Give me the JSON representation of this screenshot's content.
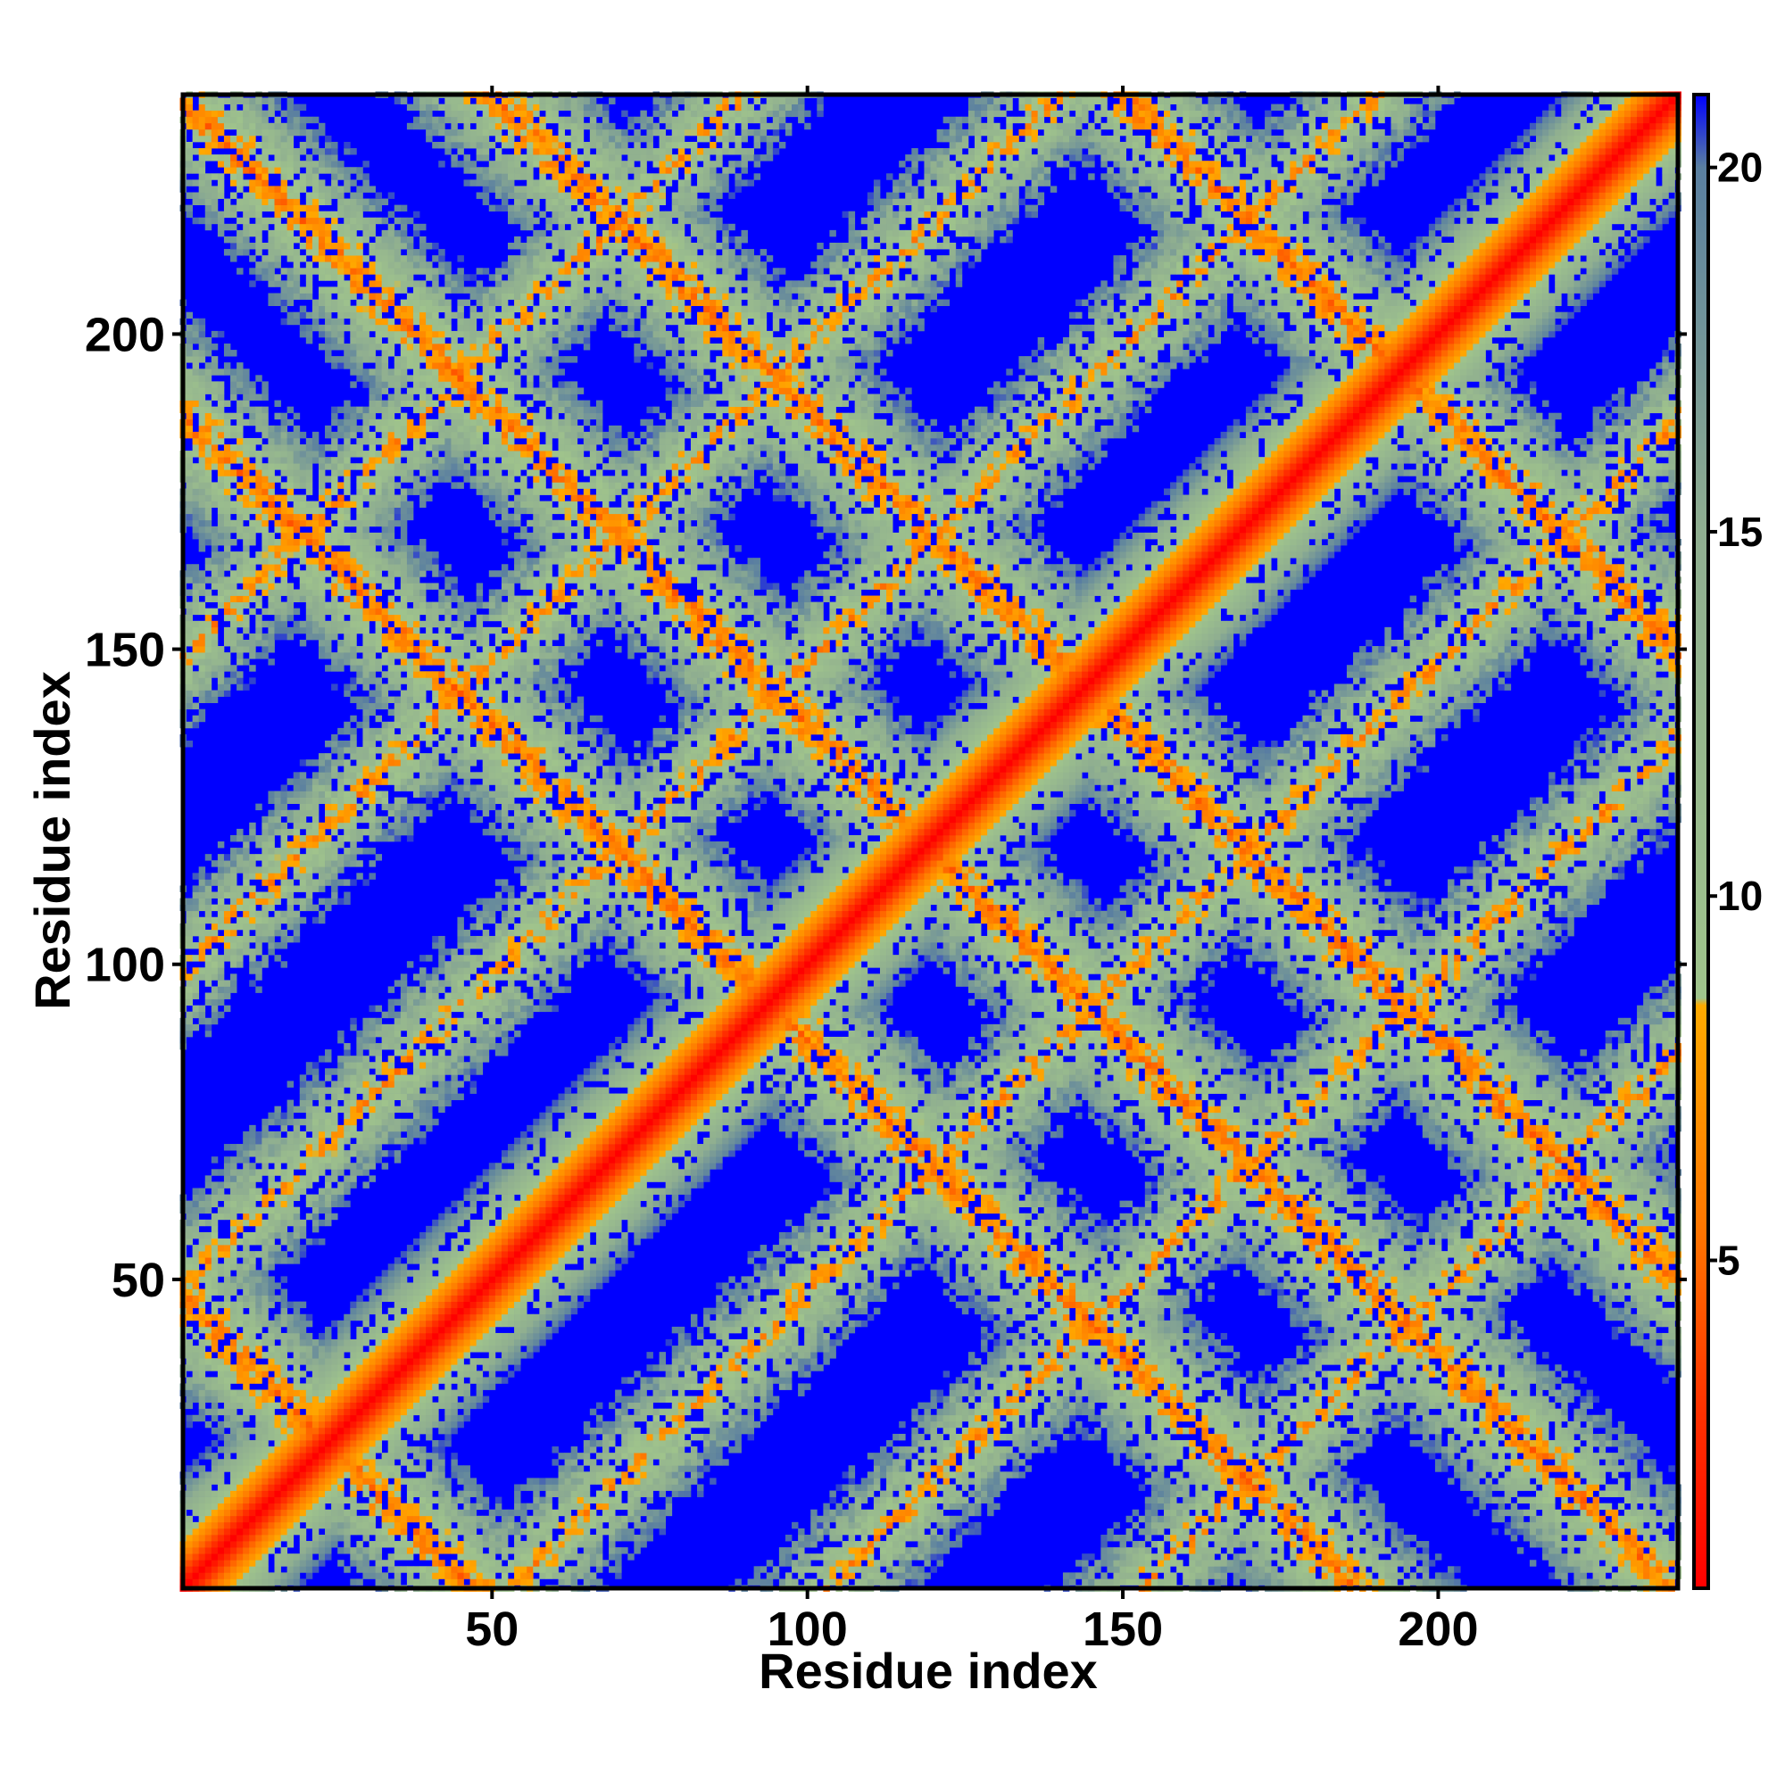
{
  "chart_data": {
    "type": "heatmap",
    "title": "",
    "xlabel": "Residue index",
    "ylabel": "Residue index",
    "xlim": [
      1,
      238
    ],
    "ylim": [
      1,
      238
    ],
    "x_ticks": [
      50,
      100,
      150,
      200
    ],
    "x_tick_labels": [
      "50",
      "100",
      "150",
      "200"
    ],
    "y_ticks": [
      50,
      100,
      150,
      200
    ],
    "y_tick_labels": [
      "50",
      "100",
      "150",
      "200"
    ],
    "colorbar": {
      "range": [
        0.5,
        21.0
      ],
      "ticks": [
        5,
        10,
        15,
        20
      ],
      "tick_labels": [
        "5",
        "10",
        "15",
        "20"
      ],
      "stops": [
        {
          "value": 0.5,
          "color": "#ff0000"
        },
        {
          "value": 3.0,
          "color": "#ff3300"
        },
        {
          "value": 5.5,
          "color": "#ff7700"
        },
        {
          "value": 8.5,
          "color": "#ffaa00"
        },
        {
          "value": 8.6,
          "color": "#a0c48c"
        },
        {
          "value": 15.0,
          "color": "#8fae90"
        },
        {
          "value": 20.0,
          "color": "#5a7fa0"
        },
        {
          "value": 21.0,
          "color": "#0000ff"
        }
      ]
    },
    "background_value": 21.0,
    "features": {
      "diagonal": "x = y",
      "anti_diagonal_bands_x_plus_y": [
        48,
        188,
        238,
        288,
        388
      ],
      "parallel_bands_y_minus_x": [
        -152,
        -102,
        -52,
        48,
        98,
        148
      ]
    },
    "grid": false,
    "legend": "colorbar right"
  }
}
